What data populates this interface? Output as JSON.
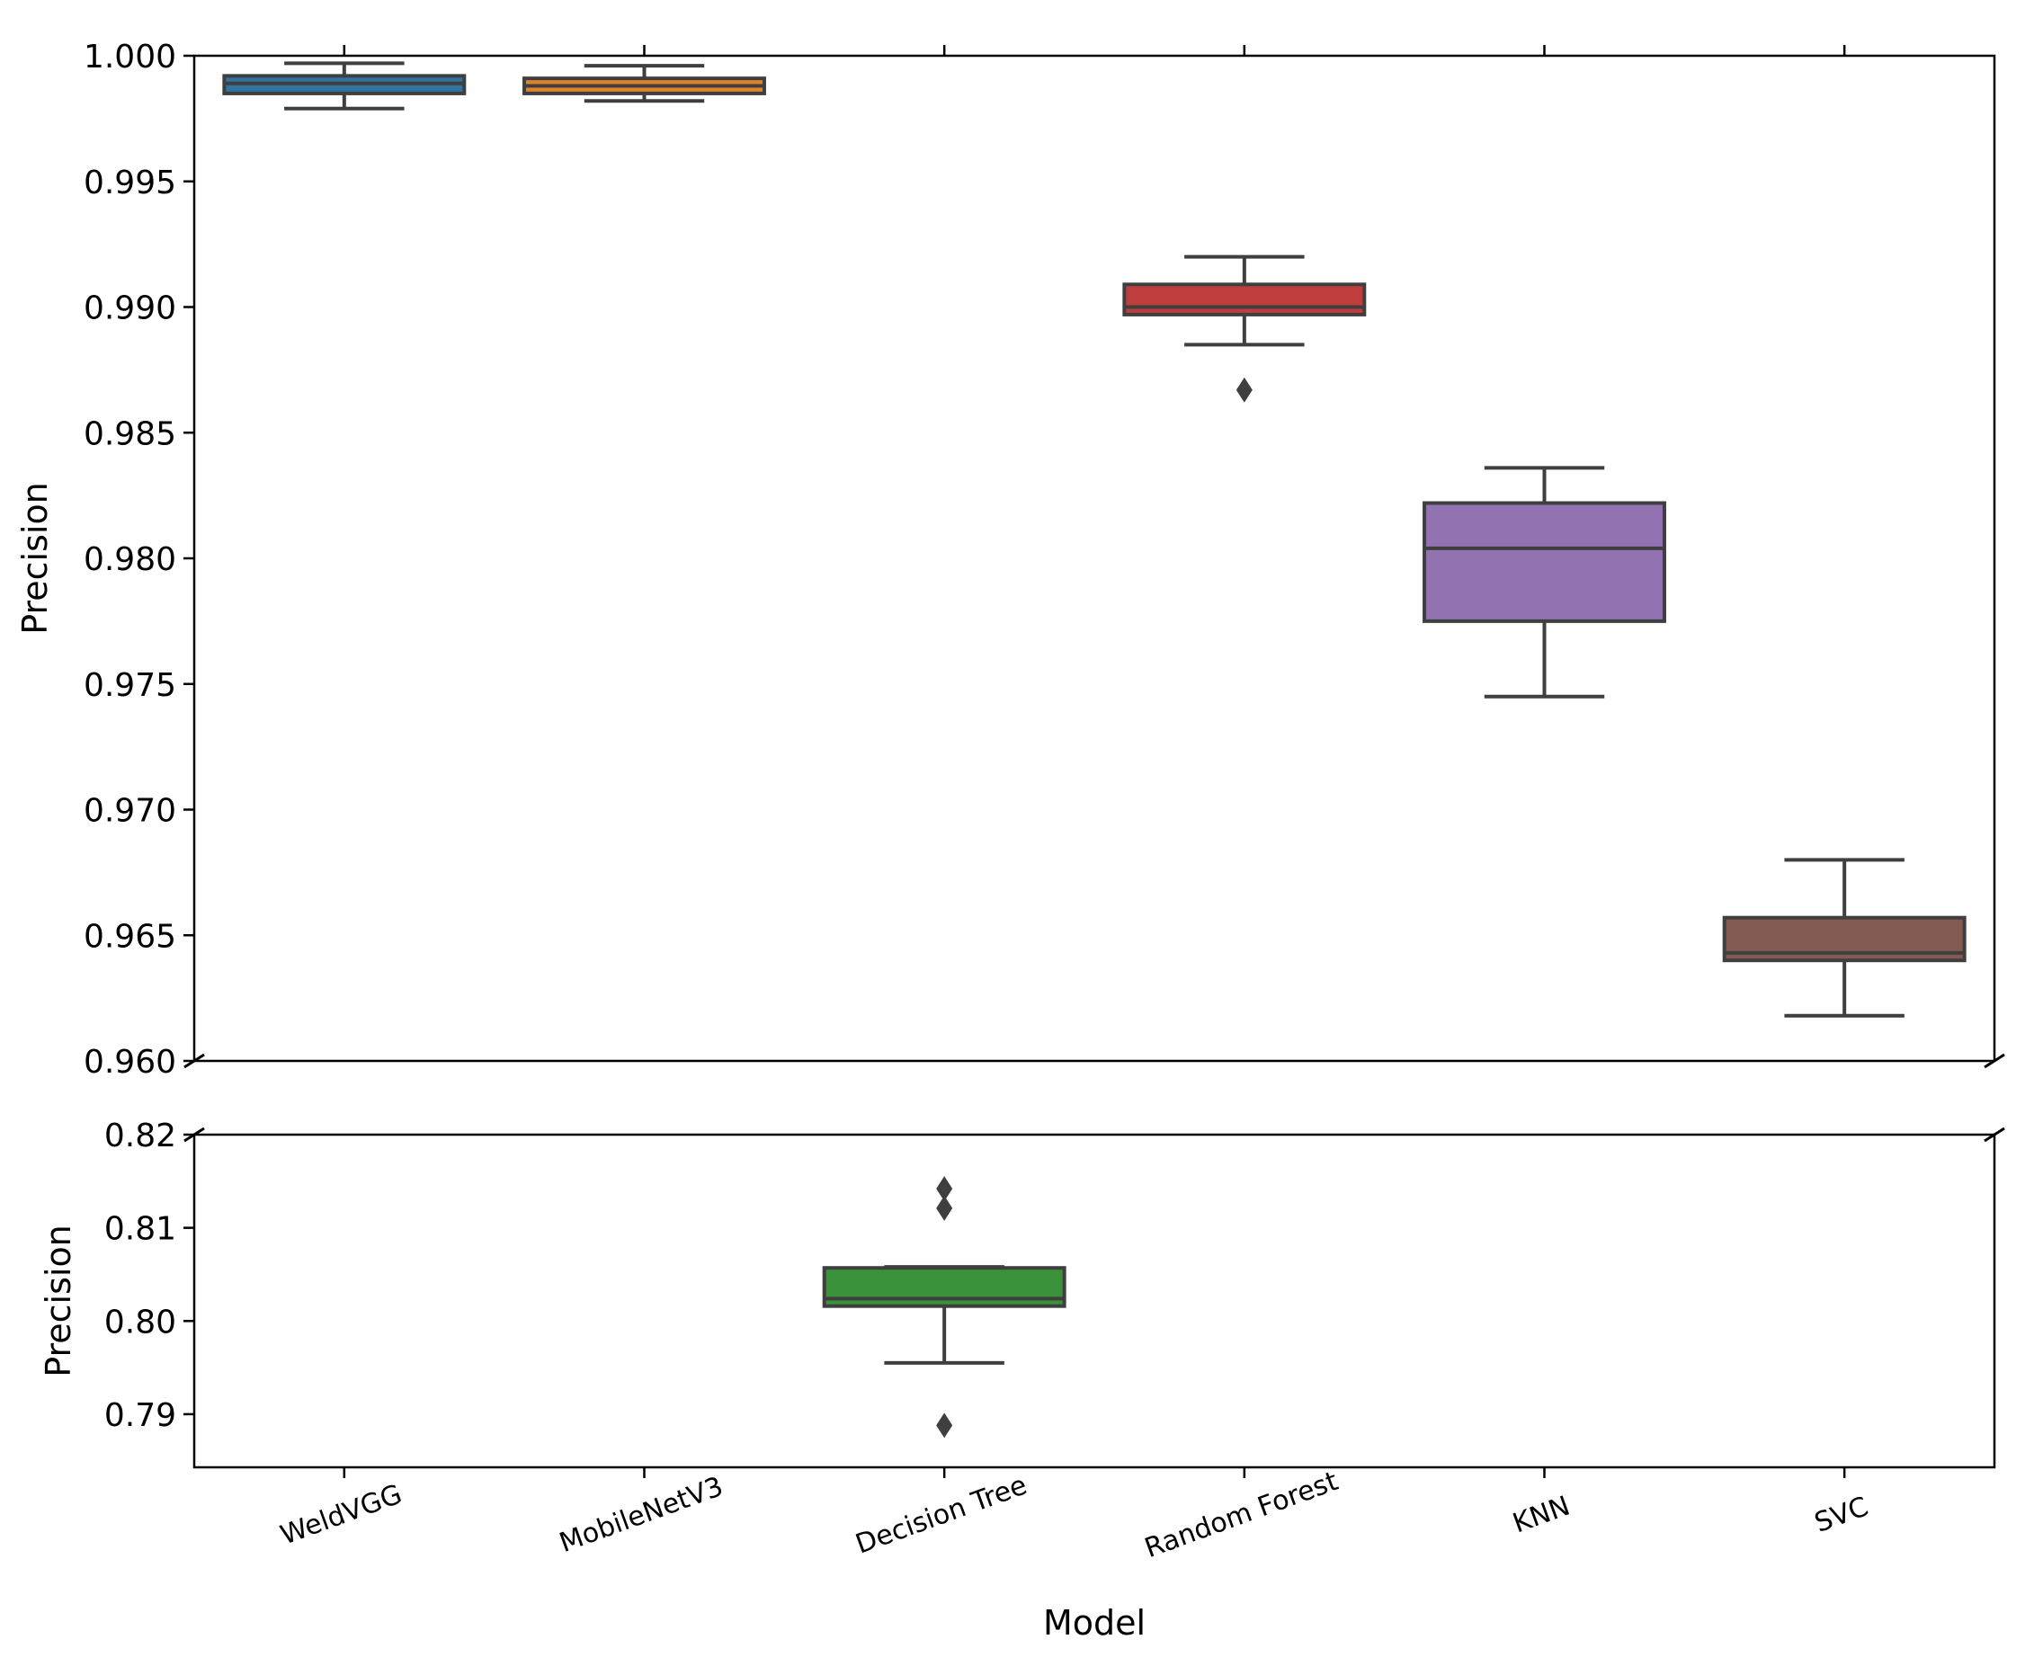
{
  "chart_data": {
    "type": "boxplot",
    "broken_y_axis": true,
    "xlabel": "Model",
    "ylabel": "Precision",
    "categories": [
      "WeldVGG",
      "MobileNetV3",
      "Decision Tree",
      "Random Forest",
      "KNN",
      "SVC"
    ],
    "colors": [
      "#3274a1",
      "#e1812c",
      "#3a923a",
      "#c03d3e",
      "#9372b2",
      "#845b53"
    ],
    "upper_panel": {
      "ylim": [
        0.96,
        1.0
      ],
      "yticks": [
        0.96,
        0.965,
        0.97,
        0.975,
        0.98,
        0.985,
        0.99,
        0.995,
        1.0
      ],
      "ytick_labels": [
        "0.960",
        "0.965",
        "0.970",
        "0.975",
        "0.980",
        "0.985",
        "0.990",
        "0.995",
        "1.000"
      ]
    },
    "lower_panel": {
      "ylim": [
        0.7843,
        0.82
      ],
      "yticks": [
        0.79,
        0.8,
        0.81,
        0.82
      ],
      "ytick_labels": [
        "0.79",
        "0.80",
        "0.81",
        "0.82"
      ]
    },
    "boxes": [
      {
        "name": "WeldVGG",
        "panel": "upper",
        "whisker_low": 0.9979,
        "q1": 0.9985,
        "median": 0.9989,
        "q3": 0.9992,
        "whisker_high": 0.9997,
        "outliers": []
      },
      {
        "name": "MobileNetV3",
        "panel": "upper",
        "whisker_low": 0.9982,
        "q1": 0.9985,
        "median": 0.9988,
        "q3": 0.9991,
        "whisker_high": 0.9996,
        "outliers": []
      },
      {
        "name": "Decision Tree",
        "panel": "lower",
        "whisker_low": 0.7955,
        "q1": 0.8016,
        "median": 0.8024,
        "q3": 0.8057,
        "whisker_high": 0.8058,
        "outliers": [
          0.8142,
          0.8121,
          0.7888
        ]
      },
      {
        "name": "Random Forest",
        "panel": "upper",
        "whisker_low": 0.9885,
        "q1": 0.9897,
        "median": 0.99,
        "q3": 0.9909,
        "whisker_high": 0.992,
        "outliers": [
          0.9867
        ]
      },
      {
        "name": "KNN",
        "panel": "upper",
        "whisker_low": 0.9745,
        "q1": 0.9775,
        "median": 0.9804,
        "q3": 0.9822,
        "whisker_high": 0.9836,
        "outliers": []
      },
      {
        "name": "SVC",
        "panel": "upper",
        "whisker_low": 0.9618,
        "q1": 0.964,
        "median": 0.9643,
        "q3": 0.9657,
        "whisker_high": 0.968,
        "outliers": []
      }
    ]
  }
}
